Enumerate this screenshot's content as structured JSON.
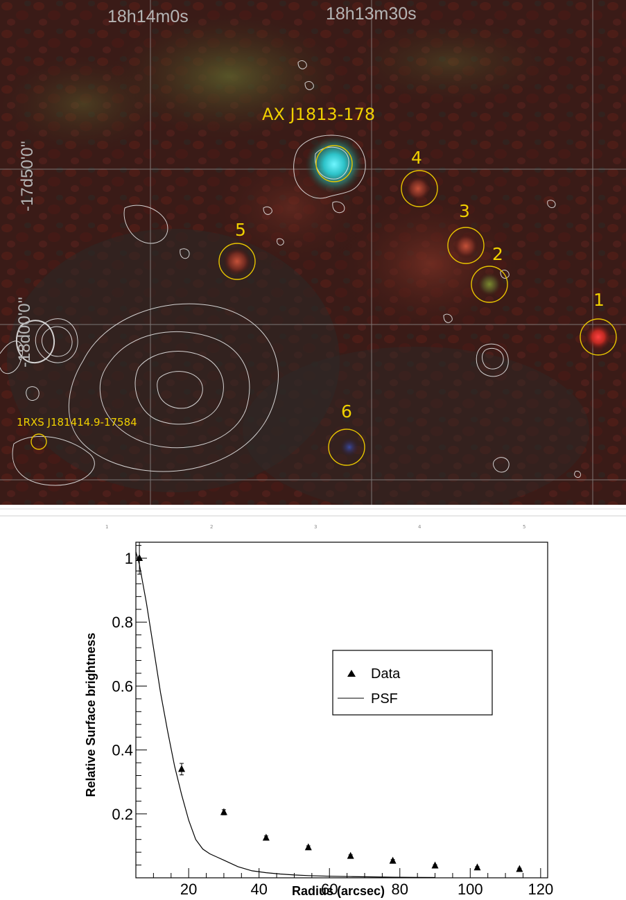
{
  "sky_map": {
    "ra_labels": [
      "18h14m0s",
      "18h13m30s"
    ],
    "dec_labels": [
      "-17d50'0''",
      "-18d00'0''"
    ],
    "target_label": "AX J1813-178",
    "rosat_label": "1RXS J181414.9-17584",
    "source_labels": [
      "1",
      "2",
      "3",
      "4",
      "5",
      "6"
    ],
    "colors": {
      "circle": "#e8c500",
      "label": "#f0d000",
      "contour": "#e6e6e6",
      "grid": "#9a9a9a"
    }
  },
  "strip": {
    "ticks": [
      "1",
      "2",
      "3",
      "4",
      "5"
    ]
  },
  "chart_data": {
    "type": "scatter",
    "xlabel": "Radius (arcsec)",
    "ylabel": "Relative Surface brightness",
    "xlim": [
      5,
      122
    ],
    "ylim": [
      0,
      1.05
    ],
    "xticks": [
      20,
      40,
      60,
      80,
      100,
      120
    ],
    "yticks": [
      0.2,
      0.4,
      0.6,
      0.8,
      1
    ],
    "legend_position": "center-right",
    "series": [
      {
        "name": "Data",
        "marker": "triangle",
        "x": [
          6,
          18,
          30,
          42,
          54,
          66,
          78,
          90,
          102,
          114
        ],
        "y": [
          1.0,
          0.34,
          0.205,
          0.125,
          0.095,
          0.068,
          0.053,
          0.038,
          0.032,
          0.027
        ],
        "yerr": [
          0.05,
          0.018,
          0.008,
          0.006,
          0.005,
          0.004,
          0.004,
          0.003,
          0.003,
          0.003
        ]
      },
      {
        "name": "PSF",
        "marker": "line",
        "x": [
          5,
          6,
          8,
          10,
          12,
          14,
          16,
          18,
          20,
          22,
          24,
          26,
          28,
          30,
          34,
          38,
          42,
          46,
          50,
          54,
          60,
          66,
          72,
          78,
          84,
          90
        ],
        "y": [
          1.02,
          0.98,
          0.86,
          0.72,
          0.58,
          0.46,
          0.35,
          0.26,
          0.18,
          0.12,
          0.09,
          0.075,
          0.065,
          0.055,
          0.035,
          0.022,
          0.016,
          0.012,
          0.009,
          0.007,
          0.005,
          0.004,
          0.003,
          0.002,
          0.0015,
          0.001
        ]
      }
    ]
  }
}
